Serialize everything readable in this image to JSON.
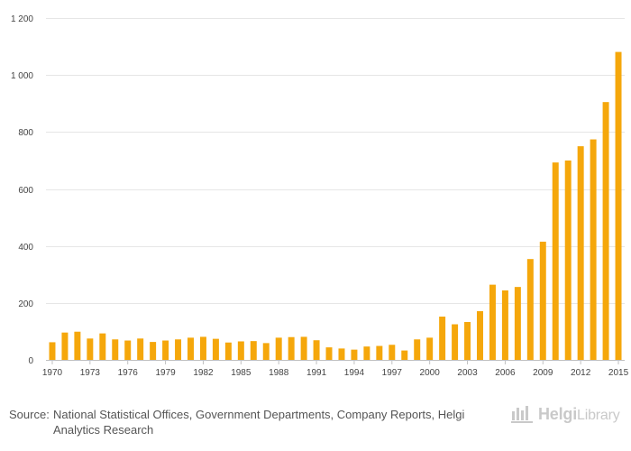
{
  "chart_data": {
    "type": "bar",
    "title": "",
    "xlabel": "",
    "ylabel": "",
    "ylim": [
      0,
      1200
    ],
    "yticks": [
      0,
      200,
      400,
      600,
      800,
      1000,
      1200
    ],
    "ytick_labels": [
      "0",
      "200",
      "400",
      "600",
      "800",
      "1 000",
      "1 200"
    ],
    "xtick_labels": [
      "1970",
      "1973",
      "1976",
      "1979",
      "1982",
      "1985",
      "1988",
      "1991",
      "1994",
      "1997",
      "2000",
      "2003",
      "2006",
      "2009",
      "2012",
      "2015"
    ],
    "categories": [
      "1970",
      "1971",
      "1972",
      "1973",
      "1974",
      "1975",
      "1976",
      "1977",
      "1978",
      "1979",
      "1980",
      "1981",
      "1982",
      "1983",
      "1984",
      "1985",
      "1986",
      "1987",
      "1988",
      "1989",
      "1990",
      "1991",
      "1992",
      "1993",
      "1994",
      "1995",
      "1996",
      "1997",
      "1998",
      "1999",
      "2000",
      "2001",
      "2002",
      "2003",
      "2004",
      "2005",
      "2006",
      "2007",
      "2008",
      "2009",
      "2010",
      "2011",
      "2012",
      "2013",
      "2014",
      "2015"
    ],
    "values": [
      62,
      96,
      99,
      75,
      93,
      72,
      68,
      75,
      63,
      68,
      72,
      78,
      81,
      74,
      61,
      65,
      66,
      59,
      78,
      80,
      81,
      69,
      44,
      40,
      36,
      47,
      49,
      53,
      33,
      72,
      78,
      152,
      125,
      133,
      171,
      264,
      244,
      256,
      354,
      415,
      693,
      700,
      750,
      774,
      905,
      1081
    ],
    "bar_color": "#f5a70b",
    "grid": true
  },
  "source": {
    "label": "Source:",
    "text": "National Statistical Offices, Government Departments, Company Reports, Helgi Analytics Research"
  },
  "logo": {
    "name_bold": "Helgi",
    "name_light": "Library",
    "icon": "library-logo-icon",
    "color": "#c9c9c9"
  }
}
